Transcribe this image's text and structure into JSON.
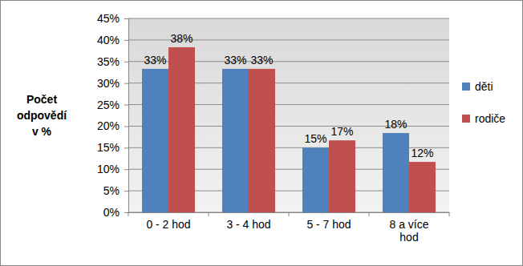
{
  "chart_data": {
    "type": "bar",
    "y_label": "Počet odpovědí v %",
    "categories": [
      "0 - 2 hod",
      "3 - 4 hod",
      "5 - 7 hod",
      "8 a více hod"
    ],
    "series": [
      {
        "name": "děti",
        "color": "#4f81bd",
        "values": [
          33.3,
          33.3,
          15.0,
          18.4
        ],
        "value_labels": [
          "33%",
          "33%",
          "15%",
          "18%"
        ]
      },
      {
        "name": "rodiče",
        "color": "#c0504d",
        "values": [
          38.3,
          33.3,
          16.7,
          11.7
        ],
        "value_labels": [
          "38%",
          "33%",
          "17%",
          "12%"
        ]
      }
    ],
    "ylim": [
      0,
      45
    ],
    "yticks": [
      {
        "value": 0,
        "label": "0%"
      },
      {
        "value": 5,
        "label": "5%"
      },
      {
        "value": 10,
        "label": "10%"
      },
      {
        "value": 15,
        "label": "15%"
      },
      {
        "value": 20,
        "label": "20%"
      },
      {
        "value": 25,
        "label": "25%"
      },
      {
        "value": 30,
        "label": "30%"
      },
      {
        "value": 35,
        "label": "35%"
      },
      {
        "value": 40,
        "label": "40%"
      },
      {
        "value": 45,
        "label": "45%"
      }
    ],
    "grid": true,
    "data_labels": true,
    "legend": "right"
  }
}
